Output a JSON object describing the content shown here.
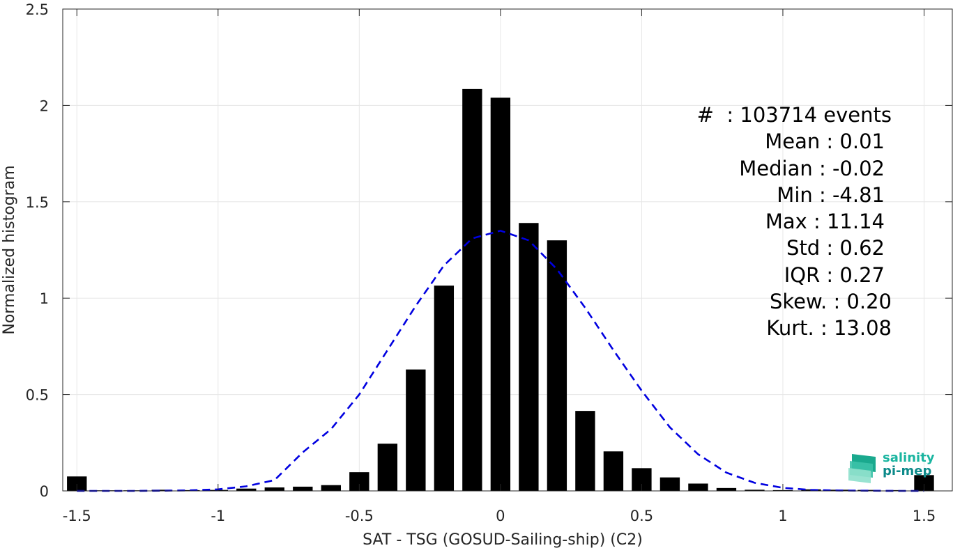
{
  "chart_data": {
    "type": "bar",
    "xlabel": "SAT - TSG (GOSUD-Sailing-ship) (C2)",
    "ylabel": "Normalized histogram",
    "xlim": [
      -1.55,
      1.6
    ],
    "ylim": [
      0,
      2.5
    ],
    "grid": true,
    "x_ticks": [
      -1.5,
      -1,
      -0.5,
      0,
      0.5,
      1,
      1.5
    ],
    "y_ticks": [
      0,
      0.5,
      1,
      1.5,
      2,
      2.5
    ],
    "x_tick_labels": [
      "-1.5",
      "-1",
      "-0.5",
      "0",
      "0.5",
      "1",
      "1.5"
    ],
    "y_tick_labels": [
      "0",
      "0.5",
      "1",
      "1.5",
      "2",
      "2.5"
    ],
    "bar_width": 0.07,
    "bars": {
      "x": [
        -1.5,
        -1.4,
        -1.3,
        -1.2,
        -1.1,
        -1.0,
        -0.9,
        -0.8,
        -0.7,
        -0.6,
        -0.5,
        -0.4,
        -0.3,
        -0.2,
        -0.1,
        0.0,
        0.1,
        0.2,
        0.3,
        0.4,
        0.5,
        0.6,
        0.7,
        0.8,
        0.9,
        1.0,
        1.1,
        1.2,
        1.3,
        1.4,
        1.5
      ],
      "values": [
        0.075,
        0.003,
        0.003,
        0.006,
        0.004,
        0.005,
        0.012,
        0.018,
        0.022,
        0.03,
        0.097,
        0.245,
        0.63,
        1.065,
        2.085,
        2.04,
        1.39,
        1.3,
        0.415,
        0.205,
        0.118,
        0.07,
        0.038,
        0.015,
        0.006,
        0.004,
        0.008,
        0.006,
        0.005,
        0.004,
        0.082
      ]
    },
    "fit": {
      "style": "dashed",
      "color": "#0000e0",
      "x": [
        -1.5,
        -1.4,
        -1.3,
        -1.2,
        -1.1,
        -1.0,
        -0.9,
        -0.8,
        -0.7,
        -0.6,
        -0.5,
        -0.4,
        -0.3,
        -0.2,
        -0.1,
        0.0,
        0.1,
        0.2,
        0.3,
        0.4,
        0.5,
        0.6,
        0.7,
        0.8,
        0.9,
        1.0,
        1.1,
        1.2,
        1.3,
        1.4,
        1.5
      ],
      "y": [
        0.0,
        0.0,
        0.0,
        0.001,
        0.003,
        0.008,
        0.024,
        0.056,
        0.2,
        0.32,
        0.5,
        0.73,
        0.96,
        1.17,
        1.31,
        1.35,
        1.3,
        1.15,
        0.95,
        0.73,
        0.52,
        0.33,
        0.19,
        0.095,
        0.042,
        0.016,
        0.005,
        0.002,
        0.001,
        0.0,
        0.0
      ],
      "in_legend": false
    },
    "bar_color": "#000000"
  },
  "stats": [
    "#  : 103714 events",
    "Mean : 0.01",
    "Median : -0.02",
    "Min : -4.81",
    "Max : 11.14",
    "Std : 0.62",
    "IQR : 0.27",
    "Skew. : 0.20",
    "Kurt. : 13.08"
  ],
  "logo": {
    "line1": "salinity",
    "line2": "pi-mep",
    "color1": "#1ab5a0",
    "color2": "#0d8a8a"
  }
}
